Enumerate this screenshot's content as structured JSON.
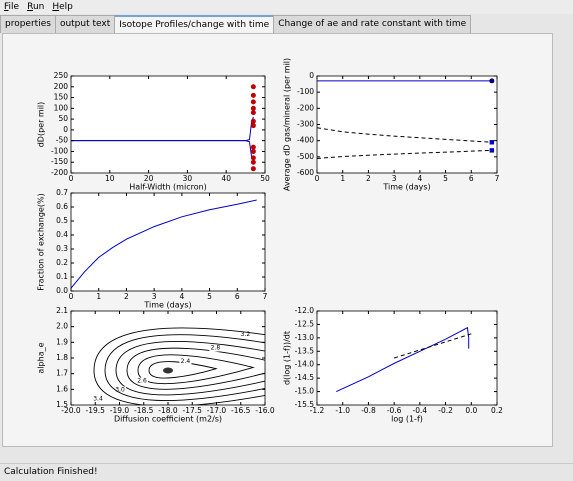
{
  "menu": [
    "File",
    "Run",
    "Help"
  ],
  "tabs": [
    "properties",
    "output text",
    "Isotope Profiles/change with time",
    "Change of ae and rate constant with time"
  ],
  "active_tab": 2,
  "status": "Calculation Finished!",
  "charts": [
    {
      "type": "line",
      "xlabel": "Half-Width (micron)",
      "ylabel": "dD(per mil)",
      "xlim": [
        0,
        50
      ],
      "xticks": [
        0,
        10,
        20,
        30,
        40,
        50
      ],
      "ylim": [
        -200,
        250
      ],
      "yticks": [
        -200,
        -150,
        -100,
        -50,
        0,
        50,
        100,
        150,
        200,
        250
      ],
      "series": [
        {
          "color": "#0000cc",
          "style": "solid",
          "x": [
            0,
            45,
            46,
            46.5,
            47
          ],
          "y": [
            -50,
            -50,
            -45,
            30,
            60
          ]
        },
        {
          "color": "#0000cc",
          "style": "solid",
          "x": [
            0,
            45,
            46,
            46.5,
            47
          ],
          "y": [
            -50,
            -50,
            -55,
            -120,
            -150
          ]
        },
        {
          "color": "#c00000",
          "style": "none",
          "marker": "circle",
          "x": [
            47,
            47,
            47,
            47,
            47,
            47,
            47,
            47,
            47,
            47,
            47,
            47
          ],
          "y": [
            200,
            160,
            130,
            100,
            80,
            40,
            20,
            -80,
            -100,
            -130,
            -150,
            -180
          ]
        }
      ]
    },
    {
      "type": "line",
      "xlabel": "Time (days)",
      "ylabel": "Average dD gas/mineral (per mil)",
      "xlim": [
        0,
        7
      ],
      "xticks": [
        0,
        1,
        2,
        3,
        4,
        5,
        6,
        7
      ],
      "ylim": [
        -600,
        0
      ],
      "yticks": [
        -600,
        -500,
        -400,
        -300,
        -200,
        -100,
        0
      ],
      "series": [
        {
          "color": "#0000cc",
          "style": "solid",
          "x": [
            0,
            6.8
          ],
          "y": [
            -30,
            -30
          ]
        },
        {
          "color": "#000080",
          "style": "none",
          "marker": "circle",
          "x": [
            6.8
          ],
          "y": [
            -30
          ]
        },
        {
          "color": "#000000",
          "style": "dashed",
          "x": [
            0,
            1,
            2,
            3,
            4,
            5,
            6,
            6.8
          ],
          "y": [
            -320,
            -345,
            -360,
            -372,
            -382,
            -392,
            -402,
            -410
          ]
        },
        {
          "color": "#000000",
          "style": "dashed",
          "x": [
            0,
            1,
            2,
            3,
            4,
            5,
            6,
            6.8
          ],
          "y": [
            -510,
            -498,
            -490,
            -483,
            -477,
            -471,
            -465,
            -460
          ]
        },
        {
          "color": "#0000cc",
          "style": "none",
          "marker": "square",
          "x": [
            6.8,
            6.8
          ],
          "y": [
            -410,
            -460
          ]
        }
      ]
    },
    {
      "type": "line",
      "xlabel": "Time (days)",
      "ylabel": "Fraction of exchange(%)",
      "xlim": [
        0,
        7
      ],
      "xticks": [
        0,
        1,
        2,
        3,
        4,
        5,
        6,
        7
      ],
      "ylim": [
        0,
        0.7
      ],
      "yticks": [
        {
          "value": 0,
          "label": "0.0"
        },
        0.1,
        0.2,
        0.3,
        0.4,
        0.5,
        0.6,
        0.7
      ],
      "series": [
        {
          "color": "#0000cc",
          "style": "solid",
          "x": [
            0,
            0.25,
            0.5,
            1,
            1.5,
            2,
            3,
            4,
            5,
            6,
            6.7
          ],
          "y": [
            0.02,
            0.08,
            0.14,
            0.24,
            0.31,
            0.37,
            0.46,
            0.53,
            0.58,
            0.62,
            0.65
          ]
        }
      ]
    },
    {
      "type": "contour",
      "xlabel": "Diffusion coefficient (m2/s)",
      "ylabel": "alpha_e",
      "xlim": [
        -20,
        -16
      ],
      "xticks": [
        {
          "value": -20,
          "label": "-20.0"
        },
        -19.5,
        {
          "value": -19,
          "label": "-19.0"
        },
        -18.5,
        {
          "value": -18,
          "label": "-18.0"
        },
        -17.5,
        {
          "value": -17,
          "label": "-17.0"
        },
        -16.5,
        {
          "value": -16,
          "label": "-16.0"
        }
      ],
      "ylim": [
        1.5,
        2.1
      ],
      "yticks": [
        1.5,
        1.6,
        1.7,
        1.8,
        1.9,
        {
          "value": 2,
          "label": "2.0"
        },
        2.1
      ],
      "minimum": {
        "x": -18,
        "y": 1.72
      },
      "levels": [
        2.4,
        2.6,
        2.8,
        {
          "value": 3,
          "label": "3.0"
        },
        3.2,
        3.4
      ]
    },
    {
      "type": "line",
      "xlabel": "log (1-f)",
      "ylabel": "d(log (1-f))/dt",
      "xlim": [
        -1.2,
        0.2
      ],
      "xticks": [
        -1.2,
        {
          "value": -1,
          "label": "-1.0"
        },
        -0.8,
        -0.6,
        -0.4,
        -0.2,
        {
          "value": 0,
          "label": "0.0"
        },
        0.2
      ],
      "ylim": [
        -15.5,
        -12
      ],
      "yticks": [
        -15.5,
        {
          "value": -15,
          "label": "-15.0"
        },
        -14.5,
        {
          "value": -14,
          "label": "-14.0"
        },
        -13.5,
        {
          "value": -13,
          "label": "-13.0"
        },
        -12.5,
        {
          "value": -12,
          "label": "-12.0"
        }
      ],
      "series": [
        {
          "color": "#0000cc",
          "style": "solid",
          "x": [
            -1.05,
            -0.8,
            -0.6,
            -0.4,
            -0.2,
            -0.03,
            -0.02,
            -0.02
          ],
          "y": [
            -15,
            -14.45,
            -13.95,
            -13.5,
            -13.05,
            -12.62,
            -13,
            -13.4
          ]
        },
        {
          "color": "#000000",
          "style": "dashed",
          "x": [
            -0.6,
            -0.3,
            0
          ],
          "y": [
            -13.75,
            -13.3,
            -12.85
          ]
        }
      ]
    }
  ]
}
